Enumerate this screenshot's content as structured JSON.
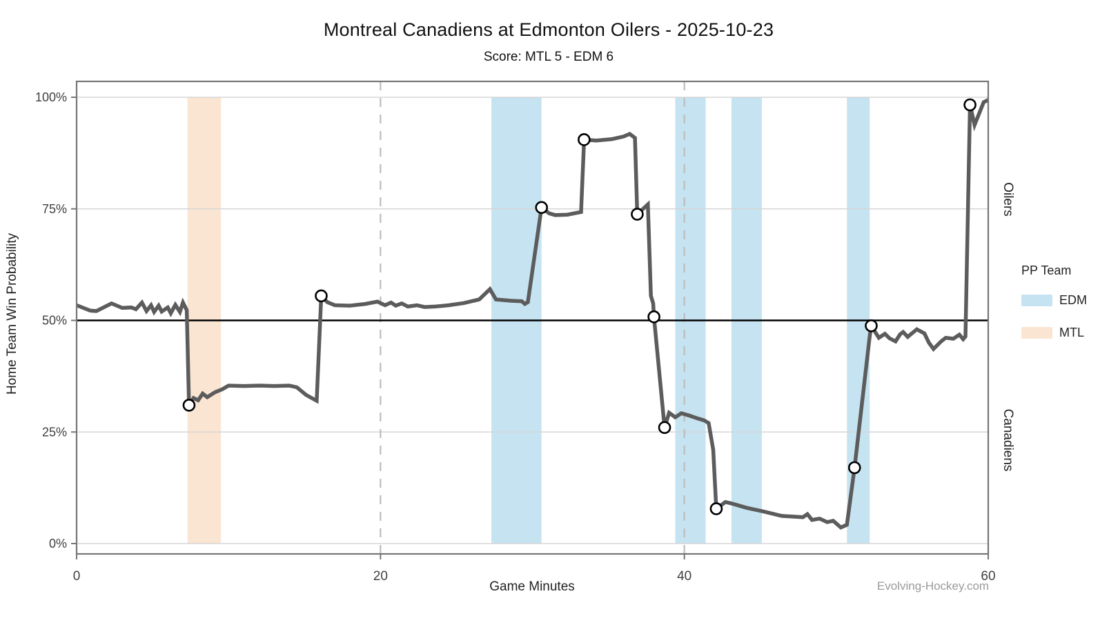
{
  "title": "Montreal Canadiens at Edmonton Oilers - 2025-10-23",
  "subtitle": "Score: MTL 5 - EDM 6",
  "watermark": "Evolving-Hockey.com",
  "chart_data": {
    "type": "line",
    "title": "Montreal Canadiens at Edmonton Oilers - 2025-10-23",
    "subtitle": "Score: MTL 5 - EDM 6",
    "xlabel": "Game Minutes",
    "ylabel": "Home Team Win Probability",
    "xlim": [
      0,
      60
    ],
    "ylim": [
      0,
      100
    ],
    "x_ticks": [
      0,
      20,
      40,
      60
    ],
    "y_ticks": [
      0,
      25,
      50,
      75,
      100
    ],
    "y_tick_suffix": "%",
    "right_label_top": "Oilers",
    "right_label_bottom": "Canadiens",
    "reference_line_y": 50,
    "period_lines_x": [
      20,
      40
    ],
    "grid": true,
    "legend": {
      "title": "PP Team",
      "position": "right",
      "entries": [
        {
          "label": "EDM",
          "color": "#c6e3f1"
        },
        {
          "label": "MTL",
          "color": "#fae5d3"
        }
      ]
    },
    "pp_bands": [
      {
        "team": "MTL",
        "start": 7.3,
        "end": 9.5,
        "color": "#fae5d3"
      },
      {
        "team": "EDM",
        "start": 27.3,
        "end": 30.6,
        "color": "#c6e3f1"
      },
      {
        "team": "EDM",
        "start": 39.4,
        "end": 41.4,
        "color": "#c6e3f1"
      },
      {
        "team": "EDM",
        "start": 43.1,
        "end": 45.1,
        "color": "#c6e3f1"
      },
      {
        "team": "EDM",
        "start": 50.7,
        "end": 52.2,
        "color": "#c6e3f1"
      }
    ],
    "series": [
      {
        "name": "home_win_probability_pct",
        "x_unit": "game_minutes",
        "points": [
          [
            0,
            53.4
          ],
          [
            0.9,
            52.2
          ],
          [
            1.3,
            52.1
          ],
          [
            2.3,
            53.8
          ],
          [
            3.0,
            52.8
          ],
          [
            3.6,
            52.9
          ],
          [
            3.9,
            52.5
          ],
          [
            4.3,
            54.0
          ],
          [
            4.6,
            52.1
          ],
          [
            4.9,
            53.4
          ],
          [
            5.1,
            51.9
          ],
          [
            5.4,
            53.3
          ],
          [
            5.6,
            52.0
          ],
          [
            6.0,
            52.9
          ],
          [
            6.2,
            51.6
          ],
          [
            6.5,
            53.5
          ],
          [
            6.8,
            51.9
          ],
          [
            7.0,
            54.0
          ],
          [
            7.25,
            52.3
          ],
          [
            7.4,
            31.0
          ],
          [
            7.7,
            32.6
          ],
          [
            8.0,
            32.1
          ],
          [
            8.3,
            33.6
          ],
          [
            8.6,
            32.8
          ],
          [
            9.1,
            33.9
          ],
          [
            9.6,
            34.6
          ],
          [
            10.0,
            35.4
          ],
          [
            11.0,
            35.3
          ],
          [
            12.0,
            35.4
          ],
          [
            13.0,
            35.3
          ],
          [
            14.0,
            35.4
          ],
          [
            14.5,
            35.0
          ],
          [
            15.1,
            33.3
          ],
          [
            15.8,
            32.0
          ],
          [
            16.1,
            55.5
          ],
          [
            16.5,
            54.1
          ],
          [
            17.0,
            53.4
          ],
          [
            18.0,
            53.3
          ],
          [
            19.0,
            53.7
          ],
          [
            19.8,
            54.2
          ],
          [
            20.3,
            53.4
          ],
          [
            20.7,
            54.0
          ],
          [
            21.0,
            53.3
          ],
          [
            21.4,
            53.8
          ],
          [
            21.8,
            53.1
          ],
          [
            22.4,
            53.4
          ],
          [
            22.9,
            53.0
          ],
          [
            23.6,
            53.1
          ],
          [
            24.5,
            53.4
          ],
          [
            25.5,
            53.9
          ],
          [
            26.5,
            54.7
          ],
          [
            27.2,
            57.0
          ],
          [
            27.6,
            54.7
          ],
          [
            28.6,
            54.4
          ],
          [
            29.3,
            54.3
          ],
          [
            29.5,
            53.7
          ],
          [
            29.7,
            54.1
          ],
          [
            30.6,
            75.3
          ],
          [
            31.1,
            74.0
          ],
          [
            31.5,
            73.6
          ],
          [
            32.3,
            73.7
          ],
          [
            33.2,
            74.3
          ],
          [
            33.4,
            90.5
          ],
          [
            34.2,
            90.3
          ],
          [
            35.2,
            90.6
          ],
          [
            36.0,
            91.2
          ],
          [
            36.4,
            91.8
          ],
          [
            36.75,
            90.9
          ],
          [
            36.9,
            73.8
          ],
          [
            37.6,
            76.0
          ],
          [
            37.8,
            55.5
          ],
          [
            37.95,
            53.8
          ],
          [
            38.0,
            50.8
          ],
          [
            38.7,
            26.0
          ],
          [
            39.0,
            29.3
          ],
          [
            39.4,
            28.3
          ],
          [
            39.8,
            29.2
          ],
          [
            40.3,
            28.7
          ],
          [
            40.9,
            28.0
          ],
          [
            41.3,
            27.6
          ],
          [
            41.6,
            27.0
          ],
          [
            41.9,
            21.0
          ],
          [
            42.1,
            7.8
          ],
          [
            42.7,
            9.3
          ],
          [
            43.1,
            9.0
          ],
          [
            44.1,
            8.0
          ],
          [
            45.2,
            7.2
          ],
          [
            46.4,
            6.2
          ],
          [
            47.8,
            5.9
          ],
          [
            48.1,
            6.6
          ],
          [
            48.4,
            5.3
          ],
          [
            48.9,
            5.6
          ],
          [
            49.4,
            4.8
          ],
          [
            49.8,
            5.1
          ],
          [
            50.3,
            3.6
          ],
          [
            50.7,
            4.2
          ],
          [
            51.2,
            17.0
          ],
          [
            52.2,
            46.5
          ],
          [
            52.3,
            48.8
          ],
          [
            52.8,
            46.1
          ],
          [
            53.2,
            47.0
          ],
          [
            53.5,
            46.0
          ],
          [
            53.9,
            45.3
          ],
          [
            54.2,
            46.9
          ],
          [
            54.4,
            47.4
          ],
          [
            54.7,
            46.3
          ],
          [
            55.3,
            48.0
          ],
          [
            55.8,
            47.1
          ],
          [
            56.1,
            45.0
          ],
          [
            56.4,
            43.6
          ],
          [
            56.9,
            45.3
          ],
          [
            57.2,
            46.1
          ],
          [
            57.7,
            45.9
          ],
          [
            58.1,
            46.8
          ],
          [
            58.35,
            45.8
          ],
          [
            58.5,
            46.4
          ],
          [
            58.8,
            98.3
          ],
          [
            59.1,
            93.8
          ],
          [
            59.7,
            98.9
          ],
          [
            60,
            99.4
          ]
        ]
      }
    ],
    "goal_markers": [
      [
        7.4,
        31.0
      ],
      [
        16.1,
        55.5
      ],
      [
        30.6,
        75.3
      ],
      [
        33.4,
        90.5
      ],
      [
        36.9,
        73.8
      ],
      [
        38.0,
        50.8
      ],
      [
        38.7,
        26.0
      ],
      [
        42.1,
        7.8
      ],
      [
        51.2,
        17.0
      ],
      [
        52.3,
        48.8
      ],
      [
        58.8,
        98.3
      ]
    ],
    "colors": {
      "line": "#5c5c5c",
      "marker_fill": "#ffffff",
      "marker_stroke": "#000000",
      "reference_line": "#000000",
      "grid": "#d6d6d6",
      "period_dash": "#bcbcbc",
      "panel_border": "#757575",
      "tick_text": "#404040",
      "pp_edm": "#c6e3f1",
      "pp_mtl": "#fae5d3"
    }
  }
}
